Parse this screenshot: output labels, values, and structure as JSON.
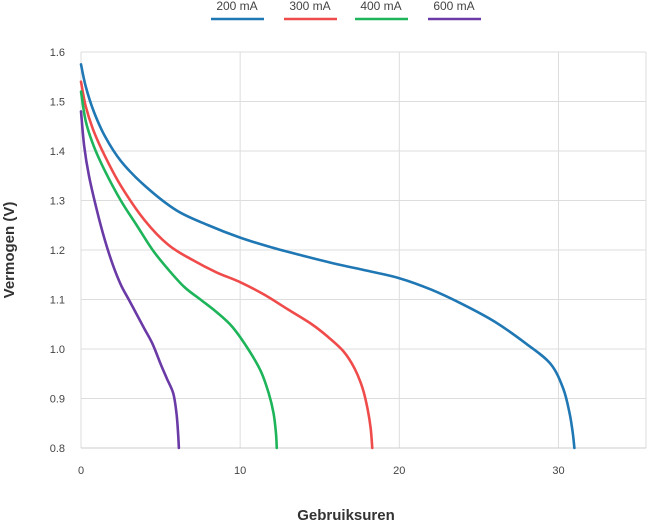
{
  "chart_data": {
    "type": "line",
    "title": "",
    "xlabel": "Gebruiksuren",
    "ylabel": "Vermogen (V)",
    "xlim": [
      0,
      35.5
    ],
    "ylim": [
      0.8,
      1.6
    ],
    "xticks": [
      0,
      10,
      20,
      30
    ],
    "yticks": [
      0.8,
      0.9,
      1.0,
      1.1,
      1.2,
      1.3,
      1.4,
      1.5,
      1.6
    ],
    "grid": true,
    "legend": "top",
    "series": [
      {
        "name": "200 mA",
        "color": "#1f77b4",
        "x": [
          0,
          0.3,
          0.8,
          1.5,
          2.5,
          4,
          6,
          8,
          10,
          12,
          14,
          16,
          18,
          20,
          22,
          24,
          26,
          28,
          29.5,
          30.3,
          30.7,
          30.9,
          31.0
        ],
        "y": [
          1.575,
          1.53,
          1.48,
          1.43,
          1.38,
          1.33,
          1.28,
          1.25,
          1.225,
          1.205,
          1.188,
          1.172,
          1.158,
          1.143,
          1.12,
          1.09,
          1.055,
          1.01,
          0.97,
          0.92,
          0.87,
          0.83,
          0.8
        ]
      },
      {
        "name": "300 mA",
        "color": "#f04b4b",
        "x": [
          0,
          0.3,
          0.8,
          1.5,
          2.5,
          4,
          5.5,
          7,
          8.5,
          10,
          11.5,
          13,
          14.5,
          15.5,
          16.5,
          17.2,
          17.7,
          18.0,
          18.2,
          18.3
        ],
        "y": [
          1.54,
          1.49,
          1.44,
          1.39,
          1.33,
          1.26,
          1.21,
          1.18,
          1.155,
          1.135,
          1.11,
          1.08,
          1.05,
          1.025,
          0.995,
          0.96,
          0.92,
          0.88,
          0.84,
          0.8
        ]
      },
      {
        "name": "400 mA",
        "color": "#1eb45a",
        "x": [
          0,
          0.3,
          0.8,
          1.5,
          2.5,
          3.5,
          4.5,
          5.5,
          6.5,
          7.5,
          8.5,
          9.5,
          10.5,
          11.3,
          11.8,
          12.1,
          12.25,
          12.3
        ],
        "y": [
          1.52,
          1.46,
          1.41,
          1.36,
          1.3,
          1.25,
          1.2,
          1.16,
          1.125,
          1.1,
          1.075,
          1.045,
          1.0,
          0.955,
          0.91,
          0.87,
          0.83,
          0.8
        ]
      },
      {
        "name": "600 mA",
        "color": "#6a3aa6",
        "x": [
          0,
          0.2,
          0.5,
          1.0,
          1.5,
          2.0,
          2.5,
          3.0,
          3.5,
          4.0,
          4.5,
          5.0,
          5.4,
          5.8,
          6.0,
          6.1,
          6.15
        ],
        "y": [
          1.48,
          1.41,
          1.35,
          1.28,
          1.22,
          1.17,
          1.13,
          1.1,
          1.07,
          1.04,
          1.01,
          0.97,
          0.94,
          0.91,
          0.87,
          0.83,
          0.8
        ]
      }
    ]
  }
}
